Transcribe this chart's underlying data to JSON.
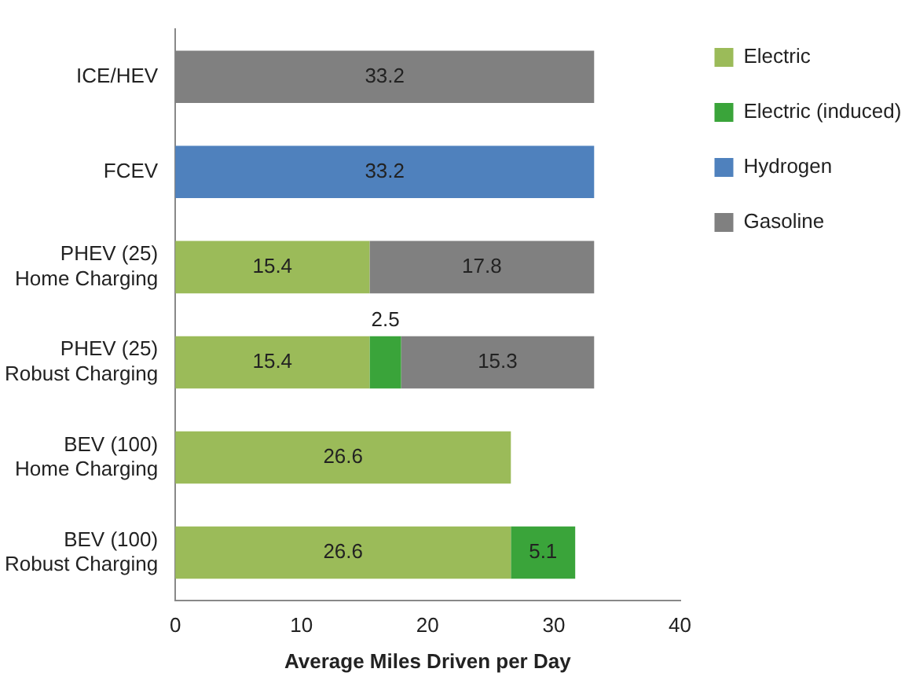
{
  "chart_data": {
    "type": "bar",
    "orientation": "horizontal",
    "stacked": true,
    "categories": [
      "ICE/HEV",
      "FCEV",
      "PHEV (25)\nHome Charging",
      "PHEV (25)\nRobust Charging",
      "BEV (100)\nHome Charging",
      "BEV (100)\nRobust Charging"
    ],
    "series": [
      {
        "name": "Electric",
        "color": "#9bbb59",
        "values": [
          null,
          null,
          15.4,
          15.4,
          26.6,
          26.6
        ]
      },
      {
        "name": "Electric (induced)",
        "color": "#3aa43a",
        "values": [
          null,
          null,
          null,
          2.5,
          null,
          5.1
        ]
      },
      {
        "name": "Hydrogen",
        "color": "#4f81bd",
        "values": [
          null,
          33.2,
          null,
          null,
          null,
          null
        ]
      },
      {
        "name": "Gasoline",
        "color": "#808080",
        "values": [
          33.2,
          null,
          17.8,
          15.3,
          null,
          null
        ]
      }
    ],
    "xlabel": "Average Miles Driven per Day",
    "xlim": [
      0,
      40
    ],
    "xticks": [
      0,
      10,
      20,
      30,
      40
    ],
    "grid": false,
    "legend": "right",
    "data_labels": true
  }
}
